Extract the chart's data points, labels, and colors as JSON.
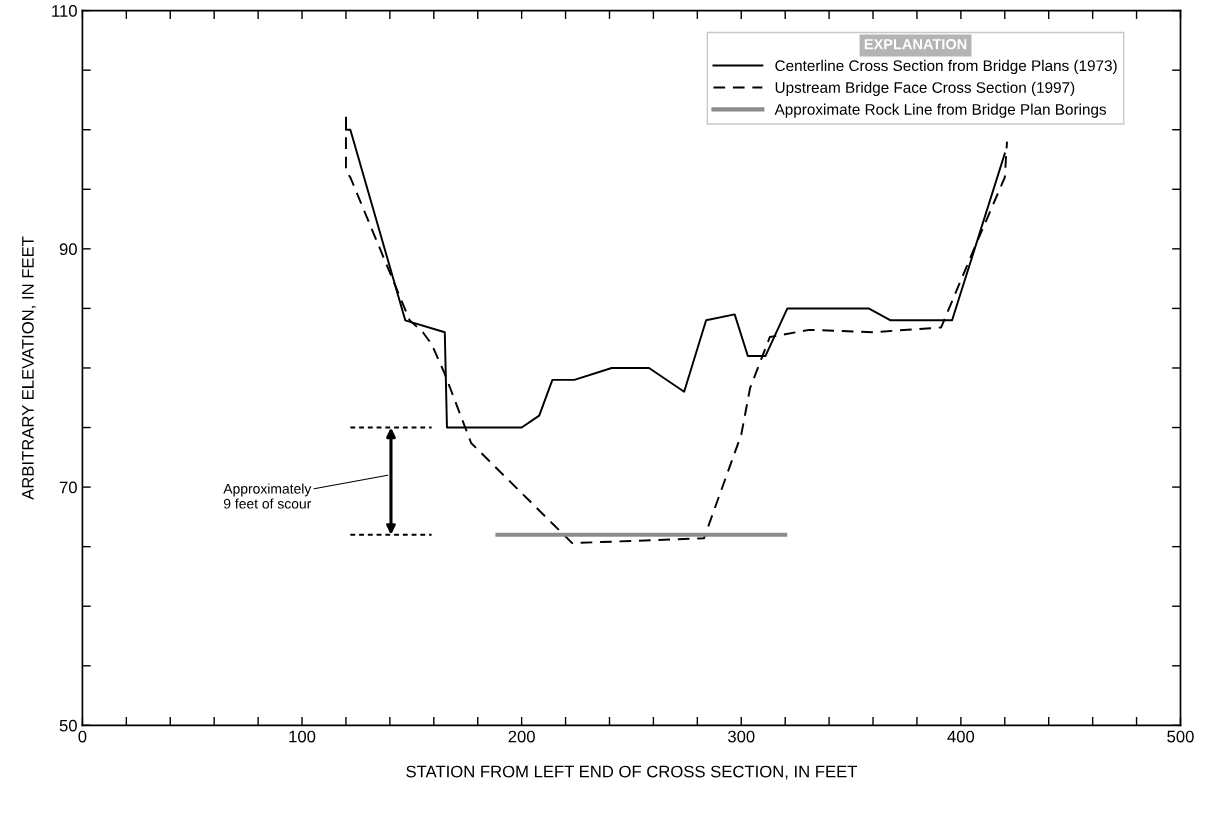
{
  "chart_data": {
    "type": "line",
    "xlabel": "STATION FROM LEFT END OF CROSS SECTION, IN FEET",
    "ylabel": "ARBITRARY ELEVATION, IN FEET",
    "legend_title": "EXPLANATION",
    "legend": "top right",
    "grid": false,
    "xlim": [
      0,
      500
    ],
    "ylim": [
      50,
      110
    ],
    "xticks": [
      0,
      {
        "value": 20,
        "label": null
      },
      {
        "value": 40,
        "label": null
      },
      {
        "value": 60,
        "label": null
      },
      {
        "value": 80,
        "label": null
      },
      100,
      {
        "value": 120,
        "label": null
      },
      {
        "value": 140,
        "label": null
      },
      {
        "value": 160,
        "label": null
      },
      {
        "value": 180,
        "label": null
      },
      200,
      {
        "value": 220,
        "label": null
      },
      {
        "value": 240,
        "label": null
      },
      {
        "value": 260,
        "label": null
      },
      {
        "value": 280,
        "label": null
      },
      300,
      {
        "value": 320,
        "label": null
      },
      {
        "value": 340,
        "label": null
      },
      {
        "value": 360,
        "label": null
      },
      {
        "value": 380,
        "label": null
      },
      400,
      {
        "value": 420,
        "label": null
      },
      {
        "value": 440,
        "label": null
      },
      {
        "value": 460,
        "label": null
      },
      {
        "value": 480,
        "label": null
      },
      500
    ],
    "yticks": [
      50,
      {
        "value": 55,
        "label": null
      },
      {
        "value": 60,
        "label": null
      },
      {
        "value": 65,
        "label": null
      },
      70,
      {
        "value": 75,
        "label": null
      },
      {
        "value": 80,
        "label": null
      },
      {
        "value": 85,
        "label": null
      },
      90,
      {
        "value": 95,
        "label": null
      },
      {
        "value": 100,
        "label": null
      },
      {
        "value": 105,
        "label": null
      },
      110
    ],
    "series": [
      {
        "name": "Centerline Cross Section from Bridge Plans (1973)",
        "color": "#000000",
        "line_style": "solid",
        "x": [
          120,
          120,
          122,
          147,
          165,
          166,
          200,
          208,
          214,
          224,
          241,
          258,
          274,
          284,
          297,
          303,
          311,
          321,
          358,
          368,
          396,
          420
        ],
        "values": [
          101,
          100,
          100,
          84,
          83,
          75,
          75,
          76,
          79,
          79,
          80,
          80,
          78,
          84,
          84.5,
          81,
          81,
          85,
          85,
          84,
          84,
          98
        ]
      },
      {
        "name": "Upstream Bridge Face Cross Section (1997)",
        "color": "#000000",
        "line_style": "dashed",
        "x": [
          120,
          120,
          122,
          149,
          155,
          159,
          165,
          177,
          223,
          283,
          300,
          304,
          313,
          331,
          360,
          391,
          406,
          420,
          421
        ],
        "values": [
          101,
          96.5,
          96,
          84,
          83,
          82,
          79.5,
          73.7,
          65.3,
          65.7,
          74.4,
          78.3,
          82.6,
          83.2,
          83,
          83.4,
          90,
          96,
          99
        ]
      },
      {
        "name": "Approximate Rock Line from Bridge Plan Borings",
        "color": "#8c8c8c",
        "line_style": "solid",
        "x": [
          189,
          320
        ],
        "values": [
          66,
          66
        ]
      },
      {
        "color": "#000000",
        "line_style": "dotted",
        "x": [
          122,
          159
        ],
        "values": [
          75,
          75
        ]
      },
      {
        "color": "#000000",
        "line_style": "dotted",
        "x": [
          122,
          159
        ],
        "values": [
          66,
          66
        ]
      }
    ],
    "annotations": [
      "Approximately\n9 feet of scour"
    ]
  }
}
